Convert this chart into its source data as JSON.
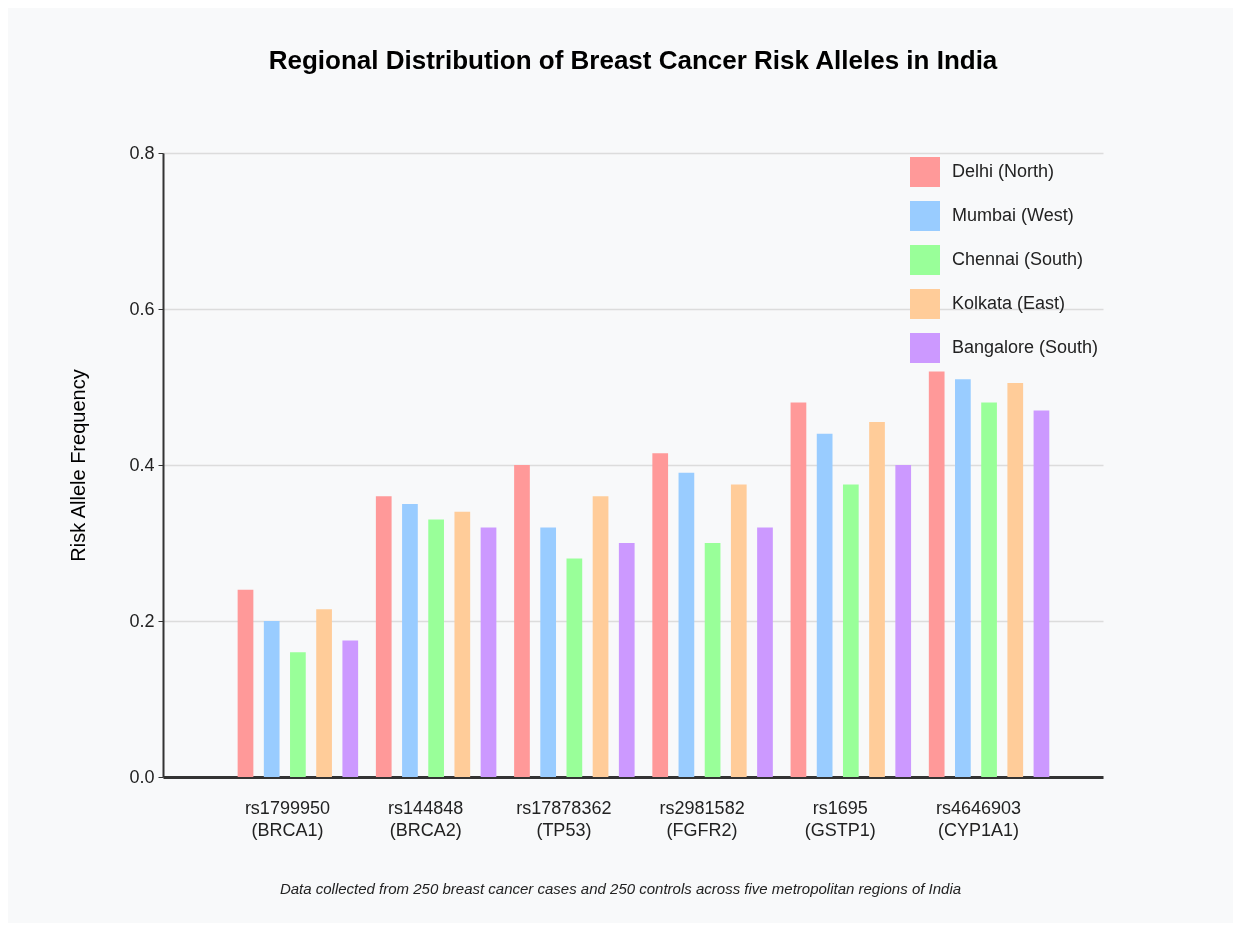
{
  "chart_data": {
    "type": "bar",
    "title": "Regional Distribution of Breast Cancer Risk Alleles in India",
    "ylabel": "Risk Allele Frequency",
    "categories": [
      "rs1799950\n(BRCA1)",
      "rs144848\n(BRCA2)",
      "rs17878362\n(TP53)",
      "rs2981582\n(FGFR2)",
      "rs1695\n(GSTP1)",
      "rs4646903\n(CYP1A1)"
    ],
    "series": [
      {
        "name": "Delhi (North)",
        "color": "#ff9999",
        "values": [
          0.24,
          0.36,
          0.4,
          0.415,
          0.48,
          0.52
        ]
      },
      {
        "name": "Mumbai (West)",
        "color": "#99ccff",
        "values": [
          0.2,
          0.35,
          0.32,
          0.39,
          0.44,
          0.51
        ]
      },
      {
        "name": "Chennai (South)",
        "color": "#99ff99",
        "values": [
          0.16,
          0.33,
          0.28,
          0.3,
          0.375,
          0.48
        ]
      },
      {
        "name": "Kolkata (East)",
        "color": "#ffcc99",
        "values": [
          0.215,
          0.34,
          0.36,
          0.375,
          0.455,
          0.505
        ]
      },
      {
        "name": "Bangalore (South)",
        "color": "#cc99ff",
        "values": [
          0.175,
          0.32,
          0.3,
          0.32,
          0.4,
          0.47
        ]
      }
    ],
    "ylim": [
      0,
      0.8
    ],
    "yticks": [
      {
        "value": 0,
        "label": "0.0"
      },
      0.2,
      0.4,
      0.6,
      0.8
    ],
    "grid": "y",
    "legend": "top right",
    "annotations": [
      "Data collected from 250 breast cancer cases and 250 controls across five metropolitan regions of India"
    ]
  }
}
